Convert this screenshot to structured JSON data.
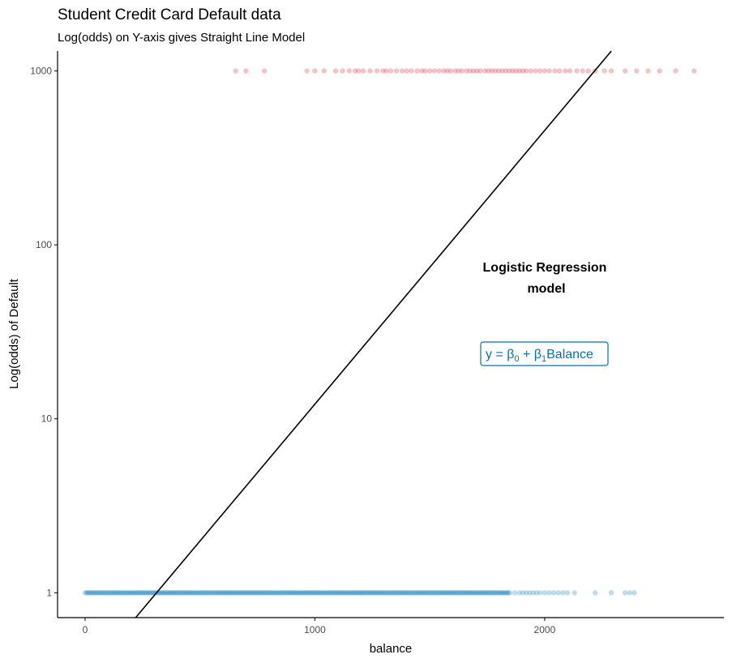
{
  "chart_data": {
    "type": "scatter",
    "title": "Student Credit Card Default data",
    "subtitle": "Log(odds) on Y-axis gives Straight Line Model",
    "xlabel": "balance",
    "ylabel": "Log(odds) of Default",
    "y_scale": "log10",
    "xlim": [
      -120,
      2780
    ],
    "ylim": [
      0.72,
      1300
    ],
    "x_ticks": [
      0,
      1000,
      2000
    ],
    "x_tick_labels": [
      "0",
      "1000",
      "2000"
    ],
    "y_ticks": [
      1,
      10,
      100,
      1000
    ],
    "y_tick_labels": [
      "1",
      "10",
      "100",
      "1000"
    ],
    "grid": false,
    "legend": "none",
    "series": [
      {
        "color": "#0072B2",
        "y": 1,
        "dense_range": [
          0,
          1850
        ],
        "sparse_x": [
          1870,
          1890,
          1905,
          1920,
          1935,
          1950,
          1965,
          1980,
          2000,
          2020,
          2040,
          2060,
          2080,
          2100,
          2130,
          2220,
          2290,
          2350,
          2370,
          2390
        ]
      },
      {
        "color": "#D55E00",
        "y": 1000,
        "x": [
          655,
          700,
          780,
          965,
          1000,
          1040,
          1090,
          1120,
          1150,
          1175,
          1190,
          1210,
          1240,
          1270,
          1295,
          1310,
          1330,
          1355,
          1380,
          1400,
          1420,
          1445,
          1465,
          1480,
          1500,
          1520,
          1540,
          1560,
          1575,
          1590,
          1610,
          1625,
          1640,
          1660,
          1675,
          1690,
          1705,
          1720,
          1740,
          1755,
          1770,
          1785,
          1800,
          1815,
          1830,
          1845,
          1860,
          1875,
          1890,
          1905,
          1920,
          1940,
          1960,
          1980,
          2000,
          2020,
          2045,
          2065,
          2090,
          2110,
          2140,
          2165,
          2190,
          2220,
          2260,
          2290,
          2350,
          2400,
          2450,
          2500,
          2570,
          2650
        ]
      }
    ],
    "fit_line": {
      "x": [
        220,
        2290
      ],
      "y": [
        0.72,
        1300
      ],
      "color": "#000000"
    },
    "annotations": [
      {
        "lines": [
          "Logistic Regression",
          "model"
        ],
        "x": 2000,
        "y": 73
      },
      {
        "text": "y = β0 + β1Balance",
        "x": 2000,
        "y": 25,
        "color": "#0072B2"
      }
    ]
  }
}
